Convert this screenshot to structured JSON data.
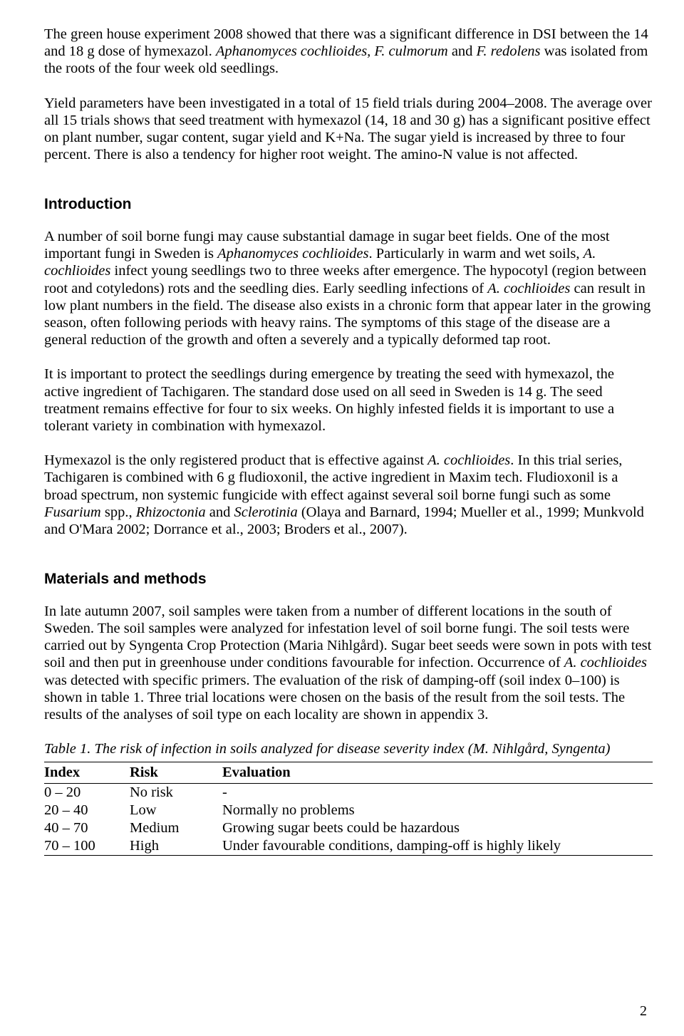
{
  "body": {
    "p1_a": "The green house experiment 2008 showed that there was a significant difference in DSI between the 14 and 18 g dose of hymexazol. ",
    "p1_b": "Aphanomyces cochlioides, F. culmorum",
    "p1_c": " and ",
    "p1_d": "F. redolens",
    "p1_e": " was isolated from the roots of the four week old seedlings.",
    "p2": "Yield parameters have been investigated in a total of 15 field trials during 2004–2008. The average over all 15 trials shows that seed treatment with hymexazol (14, 18 and 30 g) has a significant positive effect on plant number, sugar content, sugar yield and K+Na. The sugar yield is increased by three to four percent. There is also a tendency for higher root weight. The amino-N value is not affected.",
    "intro_head": "Introduction",
    "p3_a": "A number of soil borne fungi may cause substantial damage in sugar beet fields. One of the most important fungi in Sweden is ",
    "p3_b": "Aphanomyces cochlioides",
    "p3_c": ". Particularly in warm and wet soils, ",
    "p3_d": "A. cochlioides",
    "p3_e": " infect young seedlings two to three weeks after emergence. The hypocotyl (region between root and cotyledons) rots and the seedling dies. Early seedling infections of ",
    "p3_f": "A. cochlioides",
    "p3_g": " can result in low plant numbers in the field. The disease also exists in a chronic form that appear later in the growing season, often following periods with heavy rains. The symptoms of this stage of the disease are a general reduction of the growth and often a severely and a typically deformed tap root.",
    "p4": "It is important to protect the seedlings during emergence by treating the seed with hymexazol, the active ingredient of Tachigaren. The standard dose used on all seed in Sweden is 14 g. The seed treatment remains effective for four to six weeks. On highly infested fields it is important to use a tolerant variety in combination with hymexazol.",
    "p5_a": "Hymexazol is the only registered product that is effective against ",
    "p5_b": "A. cochlioides",
    "p5_c": ". In this trial series, Tachigaren is combined with 6 g fludioxonil, the active ingredient in Maxim tech. Fludioxonil is a broad spectrum, non systemic fungicide with effect against several soil borne fungi such as some ",
    "p5_d": "Fusarium",
    "p5_e": " spp., ",
    "p5_f": "Rhizoctonia",
    "p5_g": " and ",
    "p5_h": "Sclerotinia",
    "p5_i": " (Olaya and Barnard, 1994; Mueller et al., 1999; Munkvold and O'Mara 2002; Dorrance et al., 2003; Broders et al., 2007).",
    "mm_head": "Materials and methods",
    "p6_a": "In late autumn 2007, soil samples were taken from a number of different locations in the south of Sweden. The soil samples were analyzed for infestation level of soil borne fungi. The soil tests were carried out by Syngenta Crop Protection (Maria Nihlgård). Sugar beet seeds were sown in pots with test soil and then put in greenhouse under conditions favourable for infection. Occurrence of ",
    "p6_b": "A. cochlioides",
    "p6_c": " was detected with specific primers. The evaluation of the risk of damping-off (soil index 0–100) is shown in table 1. Three trial locations were chosen on the basis of the result from the soil tests. The results of the analyses of soil type on each locality are shown in appendix 3.",
    "table_caption": "Table 1. The risk of infection in soils analyzed for disease severity index (M. Nihlgård, Syngenta)"
  },
  "table": {
    "head": {
      "c1": "Index",
      "c2": "Risk",
      "c3": "Evaluation"
    },
    "rows": [
      {
        "c1": "0 – 20",
        "c2": "No risk",
        "c3": "-"
      },
      {
        "c1": "20 – 40",
        "c2": "Low",
        "c3": "Normally no problems"
      },
      {
        "c1": "40 – 70",
        "c2": "Medium",
        "c3": "Growing sugar beets could be hazardous"
      },
      {
        "c1": "70 – 100",
        "c2": "High",
        "c3": "Under favourable conditions, damping-off is highly likely"
      }
    ]
  },
  "page_number": "2"
}
